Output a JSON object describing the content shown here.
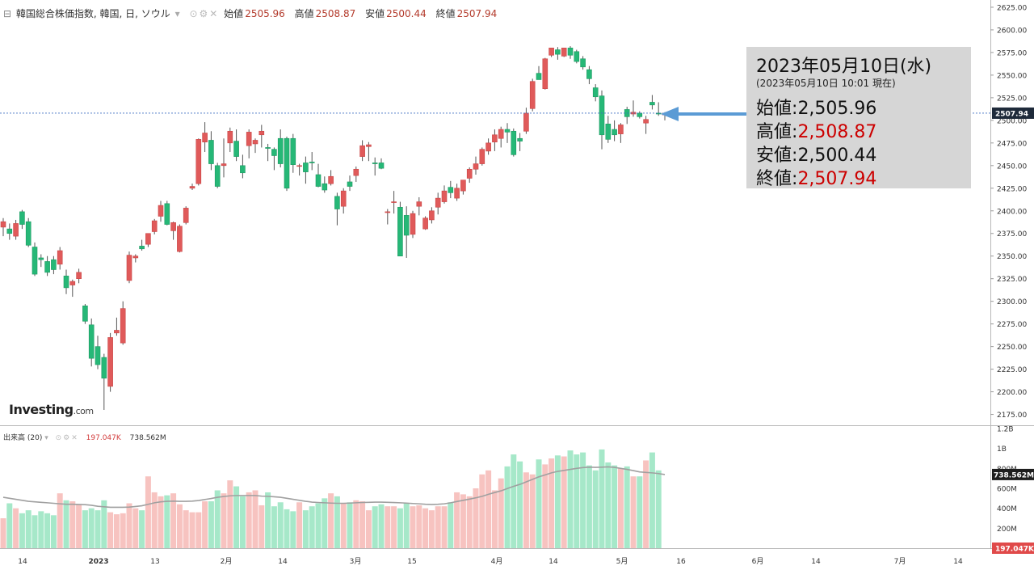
{
  "header": {
    "title": "韓国総合株価指数, 韓国, 日, ソウル",
    "open_label": "始値",
    "open": "2505.96",
    "high_label": "高値",
    "high": "2508.87",
    "low_label": "安値",
    "low": "2500.44",
    "close_label": "終値",
    "close": "2507.94"
  },
  "volume_header": {
    "label": "出来高 (20)",
    "volume": "197.047K",
    "ma": "738.562M"
  },
  "logo": {
    "name": "Investing",
    "suffix": ".com"
  },
  "info_box": {
    "date": "2023年05月10日(水)",
    "sub": "(2023年05月10日 10:01 現在)",
    "rows": [
      {
        "label": "始値",
        "value": "2,505.96",
        "color": "#111111"
      },
      {
        "label": "高値",
        "value": "2,508.87",
        "color": "#cc0000"
      },
      {
        "label": "安値",
        "value": "2,500.44",
        "color": "#111111"
      },
      {
        "label": "終値",
        "value": "2,507.94",
        "color": "#cc0000"
      }
    ]
  },
  "colors": {
    "up": "#e05a5a",
    "down": "#26b877",
    "vol_up": "#f7c3c0",
    "vol_down": "#a6e8c9",
    "ma": "#a0a0a0",
    "arrow": "#5b9bd5",
    "current_line": "#3d6dc2",
    "price_tag": "#1e2a3a",
    "volume_tag": "#e04a4a"
  },
  "chart_data": {
    "type": "candlestick",
    "title": "韓国総合株価指数, 韓国, 日, ソウル",
    "price_axis": {
      "ticks": [
        "2625.00",
        "2600.00",
        "2575.00",
        "2550.00",
        "2525.00",
        "2500.00",
        "2475.00",
        "2450.00",
        "2425.00",
        "2400.00",
        "2375.00",
        "2350.00",
        "2325.00",
        "2300.00",
        "2275.00",
        "2250.00",
        "2225.00",
        "2200.00",
        "2175.00"
      ],
      "range": [
        2163,
        2633
      ]
    },
    "current_price": "2507.94",
    "volume_axis": {
      "ticks": [
        "1.2B",
        "1B",
        "800M",
        "600M",
        "400M",
        "200M"
      ],
      "range_m": [
        0,
        1200
      ]
    },
    "volume_current": "738.562M",
    "volume_last": "197.047K",
    "x_axis": [
      "14",
      "2023",
      "13",
      "2月",
      "14",
      "3月",
      "15",
      "4月",
      "14",
      "5月",
      "16",
      "6月",
      "14",
      "7月",
      "14"
    ],
    "candles": [
      {
        "o": 2382,
        "h": 2392,
        "l": 2372,
        "c": 2388
      },
      {
        "o": 2380,
        "h": 2386,
        "l": 2368,
        "c": 2375
      },
      {
        "o": 2372,
        "h": 2390,
        "l": 2368,
        "c": 2386
      },
      {
        "o": 2399,
        "h": 2401,
        "l": 2380,
        "c": 2385
      },
      {
        "o": 2388,
        "h": 2392,
        "l": 2360,
        "c": 2362
      },
      {
        "o": 2360,
        "h": 2365,
        "l": 2328,
        "c": 2330
      },
      {
        "o": 2348,
        "h": 2352,
        "l": 2338,
        "c": 2346
      },
      {
        "o": 2344,
        "h": 2350,
        "l": 2328,
        "c": 2332
      },
      {
        "o": 2346,
        "h": 2350,
        "l": 2330,
        "c": 2335
      },
      {
        "o": 2341,
        "h": 2360,
        "l": 2335,
        "c": 2356
      },
      {
        "o": 2328,
        "h": 2335,
        "l": 2308,
        "c": 2315
      },
      {
        "o": 2318,
        "h": 2324,
        "l": 2305,
        "c": 2322
      },
      {
        "o": 2325,
        "h": 2336,
        "l": 2320,
        "c": 2332
      },
      {
        "o": 2295,
        "h": 2297,
        "l": 2275,
        "c": 2278
      },
      {
        "o": 2274,
        "h": 2281,
        "l": 2228,
        "c": 2237
      },
      {
        "o": 2250,
        "h": 2262,
        "l": 2225,
        "c": 2230
      },
      {
        "o": 2238,
        "h": 2242,
        "l": 2180,
        "c": 2215
      },
      {
        "o": 2206,
        "h": 2265,
        "l": 2200,
        "c": 2260
      },
      {
        "o": 2265,
        "h": 2282,
        "l": 2262,
        "c": 2268
      },
      {
        "o": 2254,
        "h": 2300,
        "l": 2252,
        "c": 2292
      },
      {
        "o": 2323,
        "h": 2355,
        "l": 2320,
        "c": 2351
      },
      {
        "o": 2348,
        "h": 2352,
        "l": 2343,
        "c": 2350
      },
      {
        "o": 2361,
        "h": 2368,
        "l": 2356,
        "c": 2358
      },
      {
        "o": 2363,
        "h": 2375,
        "l": 2360,
        "c": 2375
      },
      {
        "o": 2377,
        "h": 2391,
        "l": 2374,
        "c": 2389
      },
      {
        "o": 2394,
        "h": 2411,
        "l": 2388,
        "c": 2406
      },
      {
        "o": 2408,
        "h": 2411,
        "l": 2384,
        "c": 2385
      },
      {
        "o": 2378,
        "h": 2388,
        "l": 2368,
        "c": 2387
      },
      {
        "o": 2355,
        "h": 2385,
        "l": 2354,
        "c": 2383
      },
      {
        "o": 2387,
        "h": 2405,
        "l": 2385,
        "c": 2403
      },
      {
        "o": 2425,
        "h": 2430,
        "l": 2423,
        "c": 2427
      },
      {
        "o": 2430,
        "h": 2480,
        "l": 2428,
        "c": 2479
      },
      {
        "o": 2476,
        "h": 2498,
        "l": 2465,
        "c": 2486
      },
      {
        "o": 2478,
        "h": 2488,
        "l": 2445,
        "c": 2452
      },
      {
        "o": 2450,
        "h": 2453,
        "l": 2425,
        "c": 2427
      },
      {
        "o": 2450,
        "h": 2480,
        "l": 2437,
        "c": 2452
      },
      {
        "o": 2475,
        "h": 2492,
        "l": 2465,
        "c": 2488
      },
      {
        "o": 2477,
        "h": 2490,
        "l": 2455,
        "c": 2460
      },
      {
        "o": 2450,
        "h": 2462,
        "l": 2436,
        "c": 2442
      },
      {
        "o": 2472,
        "h": 2490,
        "l": 2458,
        "c": 2487
      },
      {
        "o": 2474,
        "h": 2480,
        "l": 2464,
        "c": 2478
      },
      {
        "o": 2484,
        "h": 2495,
        "l": 2470,
        "c": 2488
      },
      {
        "o": 2470,
        "h": 2474,
        "l": 2455,
        "c": 2469
      },
      {
        "o": 2468,
        "h": 2470,
        "l": 2445,
        "c": 2461
      },
      {
        "o": 2480,
        "h": 2490,
        "l": 2448,
        "c": 2452
      },
      {
        "o": 2480,
        "h": 2482,
        "l": 2422,
        "c": 2425
      },
      {
        "o": 2480,
        "h": 2485,
        "l": 2442,
        "c": 2451
      },
      {
        "o": 2450,
        "h": 2452,
        "l": 2439,
        "c": 2450
      },
      {
        "o": 2453,
        "h": 2460,
        "l": 2430,
        "c": 2443
      },
      {
        "o": 2454,
        "h": 2465,
        "l": 2445,
        "c": 2453
      },
      {
        "o": 2440,
        "h": 2452,
        "l": 2426,
        "c": 2427
      },
      {
        "o": 2430,
        "h": 2438,
        "l": 2420,
        "c": 2423
      },
      {
        "o": 2430,
        "h": 2445,
        "l": 2428,
        "c": 2438
      },
      {
        "o": 2416,
        "h": 2420,
        "l": 2384,
        "c": 2402
      },
      {
        "o": 2405,
        "h": 2425,
        "l": 2397,
        "c": 2422
      },
      {
        "o": 2432,
        "h": 2439,
        "l": 2422,
        "c": 2427
      },
      {
        "o": 2439,
        "h": 2449,
        "l": 2432,
        "c": 2446
      },
      {
        "o": 2460,
        "h": 2478,
        "l": 2455,
        "c": 2472
      },
      {
        "o": 2471,
        "h": 2476,
        "l": 2455,
        "c": 2473
      },
      {
        "o": 2453,
        "h": 2459,
        "l": 2439,
        "c": 2452
      },
      {
        "o": 2453,
        "h": 2458,
        "l": 2446,
        "c": 2447
      },
      {
        "o": 2398,
        "h": 2402,
        "l": 2385,
        "c": 2399
      },
      {
        "o": 2410,
        "h": 2422,
        "l": 2397,
        "c": 2410
      },
      {
        "o": 2404,
        "h": 2410,
        "l": 2350,
        "c": 2350
      },
      {
        "o": 2395,
        "h": 2405,
        "l": 2348,
        "c": 2373
      },
      {
        "o": 2374,
        "h": 2400,
        "l": 2370,
        "c": 2397
      },
      {
        "o": 2405,
        "h": 2415,
        "l": 2395,
        "c": 2410
      },
      {
        "o": 2380,
        "h": 2394,
        "l": 2379,
        "c": 2392
      },
      {
        "o": 2390,
        "h": 2404,
        "l": 2386,
        "c": 2400
      },
      {
        "o": 2404,
        "h": 2420,
        "l": 2396,
        "c": 2414
      },
      {
        "o": 2410,
        "h": 2428,
        "l": 2408,
        "c": 2422
      },
      {
        "o": 2426,
        "h": 2433,
        "l": 2414,
        "c": 2420
      },
      {
        "o": 2414,
        "h": 2430,
        "l": 2411,
        "c": 2425
      },
      {
        "o": 2422,
        "h": 2434,
        "l": 2418,
        "c": 2434
      },
      {
        "o": 2436,
        "h": 2448,
        "l": 2431,
        "c": 2446
      },
      {
        "o": 2446,
        "h": 2460,
        "l": 2440,
        "c": 2452
      },
      {
        "o": 2452,
        "h": 2470,
        "l": 2450,
        "c": 2468
      },
      {
        "o": 2466,
        "h": 2480,
        "l": 2462,
        "c": 2475
      },
      {
        "o": 2476,
        "h": 2490,
        "l": 2466,
        "c": 2484
      },
      {
        "o": 2480,
        "h": 2493,
        "l": 2470,
        "c": 2490
      },
      {
        "o": 2490,
        "h": 2497,
        "l": 2475,
        "c": 2487
      },
      {
        "o": 2488,
        "h": 2491,
        "l": 2460,
        "c": 2462
      },
      {
        "o": 2480,
        "h": 2486,
        "l": 2466,
        "c": 2477
      },
      {
        "o": 2488,
        "h": 2514,
        "l": 2485,
        "c": 2508
      },
      {
        "o": 2513,
        "h": 2546,
        "l": 2510,
        "c": 2543
      },
      {
        "o": 2552,
        "h": 2560,
        "l": 2545,
        "c": 2545
      },
      {
        "o": 2535,
        "h": 2569,
        "l": 2534,
        "c": 2568
      },
      {
        "o": 2572,
        "h": 2580,
        "l": 2570,
        "c": 2580
      },
      {
        "o": 2578,
        "h": 2581,
        "l": 2567,
        "c": 2573
      },
      {
        "o": 2571,
        "h": 2580,
        "l": 2570,
        "c": 2580
      },
      {
        "o": 2580,
        "h": 2582,
        "l": 2568,
        "c": 2572
      },
      {
        "o": 2576,
        "h": 2578,
        "l": 2563,
        "c": 2565
      },
      {
        "o": 2568,
        "h": 2571,
        "l": 2556,
        "c": 2559
      },
      {
        "o": 2556,
        "h": 2560,
        "l": 2540,
        "c": 2546
      },
      {
        "o": 2536,
        "h": 2540,
        "l": 2521,
        "c": 2526
      },
      {
        "o": 2527,
        "h": 2533,
        "l": 2468,
        "c": 2484
      },
      {
        "o": 2496,
        "h": 2505,
        "l": 2475,
        "c": 2479
      },
      {
        "o": 2490,
        "h": 2500,
        "l": 2477,
        "c": 2484
      },
      {
        "o": 2485,
        "h": 2497,
        "l": 2475,
        "c": 2495
      },
      {
        "o": 2512,
        "h": 2515,
        "l": 2496,
        "c": 2504
      },
      {
        "o": 2507,
        "h": 2522,
        "l": 2504,
        "c": 2509
      },
      {
        "o": 2508,
        "h": 2510,
        "l": 2502,
        "c": 2504
      },
      {
        "o": 2497,
        "h": 2505,
        "l": 2485,
        "c": 2501
      },
      {
        "o": 2520,
        "h": 2528,
        "l": 2512,
        "c": 2517
      },
      {
        "o": 2508,
        "h": 2520,
        "l": 2505,
        "c": 2507
      },
      {
        "o": 2506,
        "h": 2509,
        "l": 2500,
        "c": 2508
      }
    ],
    "volumes_m": [
      300,
      450,
      400,
      350,
      380,
      330,
      370,
      350,
      330,
      550,
      480,
      470,
      440,
      380,
      400,
      380,
      480,
      360,
      340,
      350,
      450,
      400,
      380,
      720,
      560,
      520,
      530,
      550,
      440,
      380,
      360,
      360,
      470,
      470,
      580,
      550,
      680,
      620,
      520,
      560,
      580,
      430,
      560,
      420,
      460,
      390,
      370,
      460,
      380,
      420,
      450,
      500,
      550,
      520,
      450,
      460,
      480,
      470,
      380,
      420,
      440,
      420,
      420,
      400,
      450,
      420,
      430,
      400,
      380,
      420,
      420,
      460,
      560,
      540,
      520,
      600,
      740,
      780,
      580,
      700,
      820,
      940,
      870,
      760,
      740,
      890,
      840,
      900,
      930,
      920,
      980,
      940,
      960,
      830,
      780,
      990,
      860,
      830,
      800,
      820,
      720,
      720,
      880,
      960,
      780,
      0
    ],
    "volume_ma_m": [
      510,
      500,
      490,
      480,
      470,
      465,
      460,
      455,
      450,
      445,
      440,
      440,
      438,
      436,
      430,
      420,
      415,
      410,
      410,
      410,
      412,
      418,
      425,
      440,
      455,
      465,
      470,
      472,
      470,
      470,
      472,
      478,
      488,
      498,
      510,
      518,
      525,
      528,
      528,
      528,
      528,
      522,
      520,
      515,
      510,
      500,
      490,
      480,
      470,
      462,
      458,
      455,
      452,
      450,
      450,
      452,
      455,
      458,
      460,
      462,
      462,
      460,
      458,
      455,
      452,
      448,
      445,
      440,
      438,
      440,
      445,
      455,
      468,
      480,
      492,
      505,
      520,
      540,
      558,
      575,
      598,
      620,
      640,
      665,
      690,
      715,
      735,
      755,
      770,
      780,
      790,
      800,
      808,
      812,
      810,
      812,
      815,
      810,
      800,
      790,
      778,
      765,
      760,
      755,
      748,
      738.562
    ]
  }
}
